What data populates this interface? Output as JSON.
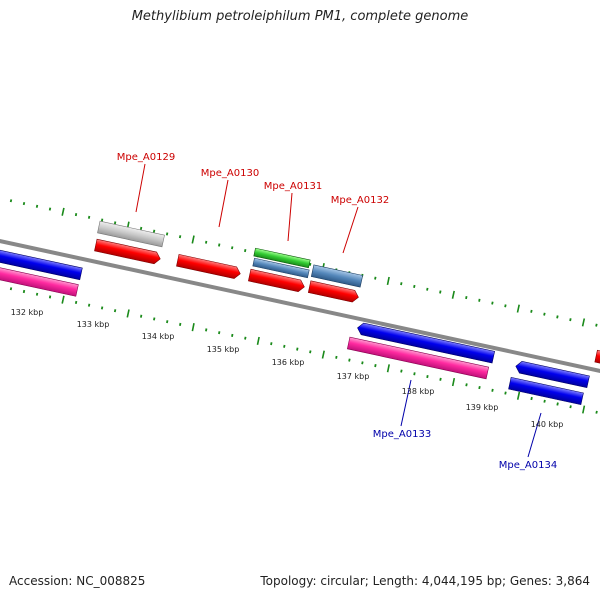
{
  "title": "Methylibium petroleiphilum PM1, complete genome",
  "footer": {
    "accession": "Accession: NC_008825",
    "summary": "Topology: circular; Length: 4,044,195 bp; Genes: 3,864"
  },
  "colors": {
    "backbone": "#888888",
    "tick": "#1a8a1a",
    "label_forward": "#cc0000",
    "label_reverse": "#0000aa",
    "ruler_text": "#222222"
  },
  "ruler_labels": [
    "132 kbp",
    "133 kbp",
    "134 kbp",
    "135 kbp",
    "136 kbp",
    "137 kbp",
    "138 kbp",
    "139 kbp",
    "140 kbp"
  ],
  "gene_labels": {
    "forward": [
      "Mpe_A0129",
      "Mpe_A0130",
      "Mpe_A0131",
      "Mpe_A0132"
    ],
    "reverse": [
      "Mpe_A0133",
      "Mpe_A0134"
    ]
  }
}
